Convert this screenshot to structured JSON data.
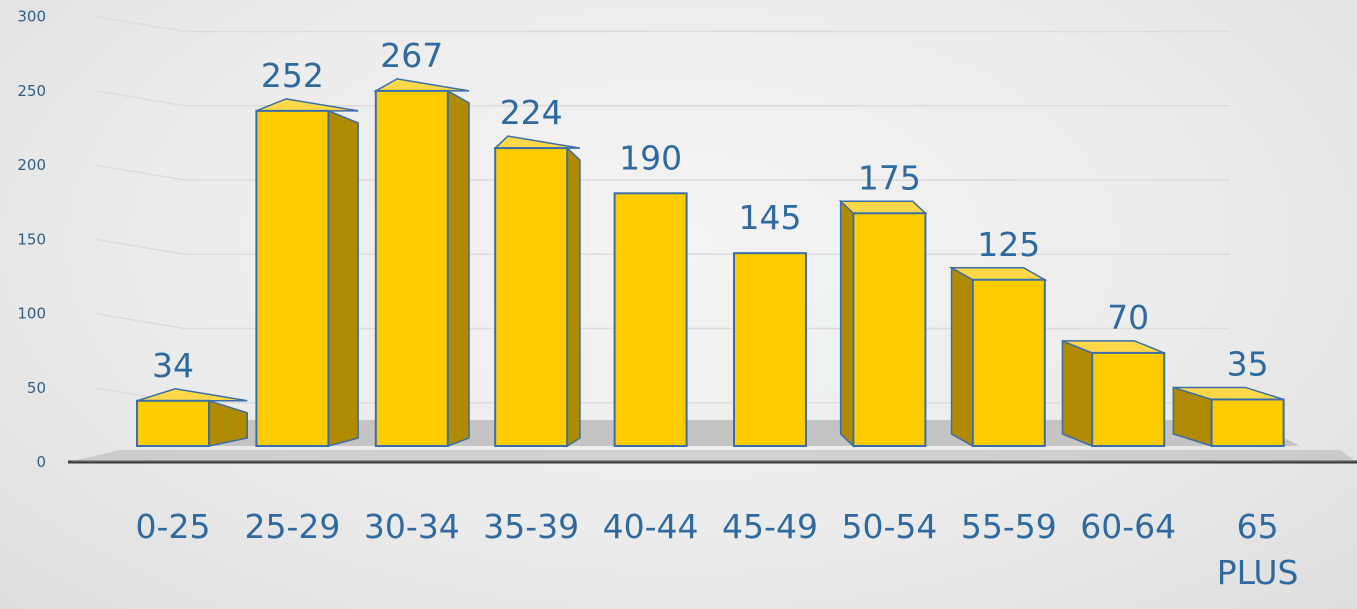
{
  "chart_data": {
    "type": "bar",
    "title": "",
    "xlabel": "",
    "ylabel": "",
    "categories": [
      "0-25",
      "25-29",
      "30-34",
      "35-39",
      "40-44",
      "45-49",
      "50-54",
      "55-59",
      "60-64",
      "65 PLUS"
    ],
    "values": [
      34,
      252,
      267,
      224,
      190,
      145,
      175,
      125,
      70,
      35
    ],
    "data_labels": [
      "34",
      "252",
      "267",
      "224",
      "190",
      "145",
      "175",
      "125",
      "70",
      "35"
    ],
    "ylim": [
      0,
      300
    ],
    "yticks": [
      0,
      50,
      100,
      150,
      200,
      250,
      300
    ],
    "grid": true,
    "legend": "none",
    "style": "3d-column",
    "colors": {
      "bar_front": "#ffcc00",
      "bar_side": "#b08a00",
      "bar_top": "#ffd84a",
      "bar_outline": "#3a6ea8",
      "label_text": "#2e6aa0",
      "tick_text": "#2e5f8a"
    }
  }
}
